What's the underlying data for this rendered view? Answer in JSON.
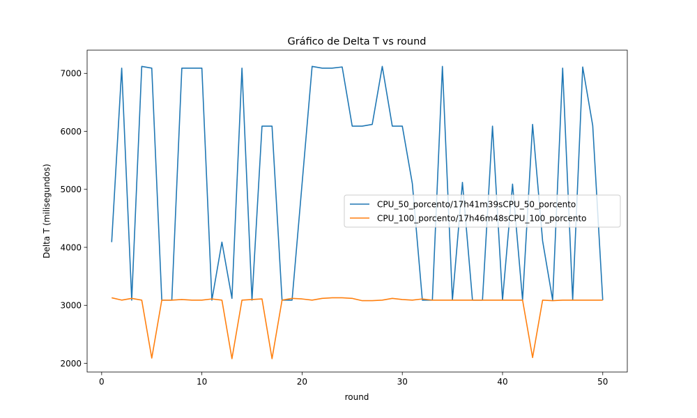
{
  "chart_data": {
    "type": "line",
    "title": "Gráfico de Delta T vs round",
    "xlabel": "round",
    "ylabel": "Delta T (milisegundos)",
    "xlim": [
      -1.45,
      52.45
    ],
    "ylim": [
      1850,
      7400
    ],
    "xticks": [
      0,
      10,
      20,
      30,
      40,
      50
    ],
    "yticks": [
      2000,
      3000,
      4000,
      5000,
      6000,
      7000
    ],
    "grid": false,
    "legend_position": "center-right",
    "x": [
      1,
      2,
      3,
      4,
      5,
      6,
      7,
      8,
      9,
      10,
      11,
      12,
      13,
      14,
      15,
      16,
      17,
      18,
      19,
      20,
      21,
      22,
      23,
      24,
      25,
      26,
      27,
      28,
      29,
      30,
      31,
      32,
      33,
      34,
      35,
      36,
      37,
      38,
      39,
      40,
      41,
      42,
      43,
      44,
      45,
      46,
      47,
      48,
      49,
      50
    ],
    "series": [
      {
        "name": "CPU_50_porcento/17h41m39sCPU_50_porcento",
        "color": "#1f77b4",
        "values": [
          4090,
          7090,
          3090,
          7120,
          7090,
          3090,
          3090,
          7090,
          7090,
          7090,
          3090,
          4090,
          3120,
          7090,
          3090,
          6090,
          6090,
          3090,
          3090,
          5100,
          7120,
          7090,
          7090,
          7110,
          6090,
          6090,
          6120,
          7120,
          6090,
          6090,
          5100,
          3090,
          3090,
          7120,
          3090,
          5120,
          3090,
          3090,
          6090,
          3090,
          5090,
          3090,
          6120,
          4110,
          3090,
          7090,
          3090,
          7110,
          6100,
          3090
        ]
      },
      {
        "name": "CPU_100_porcento/17h46m48sCPU_100_porcento",
        "color": "#ff7f0e",
        "values": [
          3130,
          3090,
          3120,
          3090,
          2090,
          3090,
          3090,
          3100,
          3090,
          3090,
          3110,
          3090,
          2080,
          3090,
          3100,
          3110,
          2080,
          3090,
          3120,
          3110,
          3090,
          3120,
          3130,
          3130,
          3120,
          3080,
          3080,
          3090,
          3120,
          3100,
          3090,
          3110,
          3090,
          3090,
          3090,
          3090,
          3090,
          3090,
          3090,
          3090,
          3090,
          3090,
          2100,
          3090,
          3080,
          3090,
          3090,
          3090,
          3090,
          3090
        ]
      }
    ]
  }
}
